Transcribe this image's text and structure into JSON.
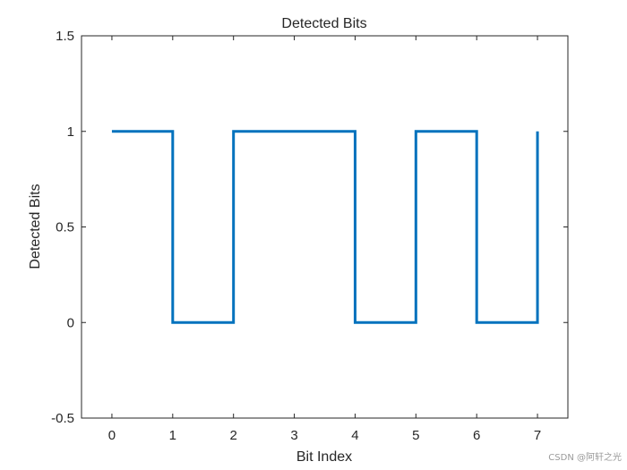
{
  "chart_data": {
    "type": "line",
    "step": "post",
    "title": "Detected Bits",
    "xlabel": "Bit Index",
    "ylabel": "Detected Bits",
    "xlim": [
      -0.5,
      7.5
    ],
    "ylim": [
      -0.5,
      1.5
    ],
    "xticks": [
      0,
      1,
      2,
      3,
      4,
      5,
      6,
      7
    ],
    "yticks": [
      -0.5,
      0,
      0.5,
      1,
      1.5
    ],
    "ytick_labels": [
      "-0.5",
      "0",
      "0.5",
      "1",
      "1.5"
    ],
    "grid": false,
    "series": [
      {
        "x": [
          0,
          1,
          2,
          3,
          4,
          5,
          6,
          7
        ],
        "values": [
          1,
          0,
          1,
          1,
          0,
          1,
          0,
          1
        ],
        "color": "#0072BD"
      }
    ]
  },
  "watermark": "CSDN @阿轩之光"
}
